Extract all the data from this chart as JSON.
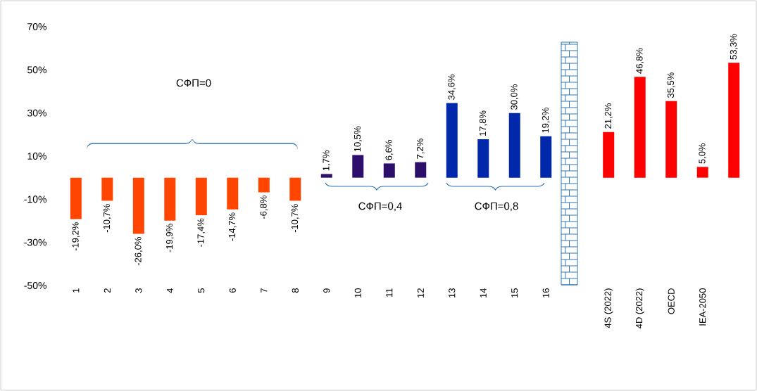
{
  "chart_data": {
    "type": "bar",
    "categories": [
      "1",
      "2",
      "3",
      "4",
      "5",
      "6",
      "7",
      "8",
      "9",
      "10",
      "11",
      "12",
      "13",
      "14",
      "15",
      "16",
      null,
      "4S (2022)",
      "4D (2022)",
      "OECD",
      "IEA-2050",
      null
    ],
    "values": [
      -19.2,
      -10.7,
      -26.0,
      -19.9,
      -17.4,
      -14.7,
      -6.8,
      -10.7,
      1.7,
      10.5,
      6.6,
      7.2,
      34.6,
      17.8,
      30.0,
      19.2,
      null,
      21.2,
      46.8,
      35.5,
      5.0,
      53.3
    ],
    "colors": [
      "#ff4500",
      "#ff4500",
      "#ff4500",
      "#ff4500",
      "#ff4500",
      "#ff4500",
      "#ff4500",
      "#ff4500",
      "#2e0e6b",
      "#2e0e6b",
      "#2e0e6b",
      "#2e0e6b",
      "#0028aa",
      "#0028aa",
      "#0028aa",
      "#0028aa",
      null,
      "#ff0000",
      "#ff0000",
      "#ff0000",
      "#ff0000",
      "#ff0000"
    ],
    "value_labels": [
      "-19,2%",
      "-10,7%",
      "-26,0%",
      "-19,9%",
      "-17,4%",
      "-14,7%",
      "-6,8%",
      "-10,7%",
      "1,7%",
      "10,5%",
      "6,6%",
      "7,2%",
      "34,6%",
      "17,8%",
      "30,0%",
      "19,2%",
      null,
      "21,2%",
      "46,8%",
      "35,5%",
      "5,0%",
      "53,3%"
    ],
    "ylim": [
      -50,
      70
    ],
    "yticks": [
      {
        "value": -50,
        "label": "-50%"
      },
      {
        "value": -30,
        "label": "-30%"
      },
      {
        "value": -10,
        "label": "-10%"
      },
      {
        "value": 10,
        "label": "10%"
      },
      {
        "value": 30,
        "label": "30%"
      },
      {
        "value": 50,
        "label": "50%"
      },
      {
        "value": 70,
        "label": "70%"
      }
    ],
    "annotations": [
      "СФП=0",
      "СФП=0,4",
      "СФП=0,8"
    ]
  }
}
